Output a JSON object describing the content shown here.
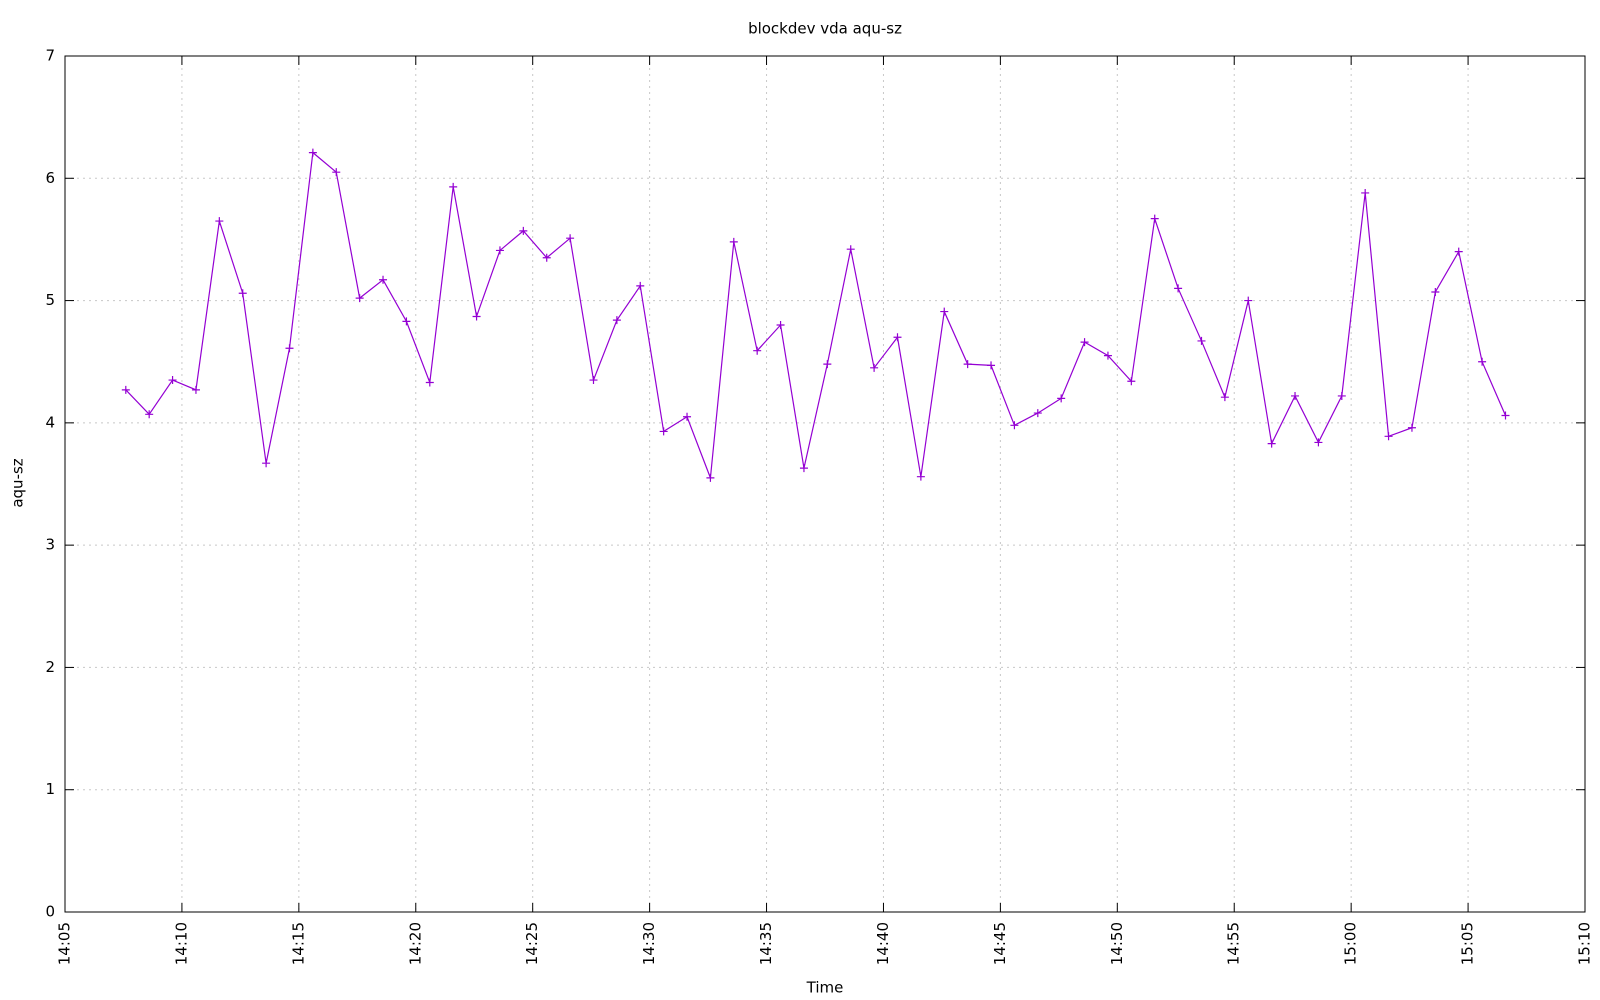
{
  "chart_data": {
    "type": "line",
    "title": "blockdev vda aqu-sz",
    "xlabel": "Time",
    "ylabel": "aqu-sz",
    "x": [
      847.6,
      848.6,
      849.6,
      850.6,
      851.6,
      852.6,
      853.6,
      854.6,
      855.6,
      856.6,
      857.6,
      858.6,
      859.6,
      860.6,
      861.6,
      862.6,
      863.6,
      864.6,
      865.6,
      866.6,
      867.6,
      868.6,
      869.6,
      870.6,
      871.6,
      872.6,
      873.6,
      874.6,
      875.6,
      876.6,
      877.6,
      878.6,
      879.6,
      880.6,
      881.6,
      882.6,
      883.6,
      884.6,
      885.6,
      886.6,
      887.6,
      888.6,
      889.6,
      890.6,
      891.6,
      892.6,
      893.6,
      894.6,
      895.6,
      896.6,
      897.6,
      898.6,
      899.6,
      900.6,
      901.6,
      902.6,
      903.6,
      904.6,
      905.6,
      906.6
    ],
    "series": [
      {
        "color": "#9400d3",
        "values": [
          4.27,
          4.07,
          4.35,
          4.27,
          5.65,
          5.06,
          3.67,
          4.61,
          6.21,
          6.05,
          5.02,
          5.17,
          4.83,
          4.33,
          5.93,
          4.87,
          5.41,
          5.57,
          5.35,
          5.51,
          4.35,
          4.84,
          5.12,
          3.93,
          4.05,
          3.55,
          5.48,
          4.59,
          4.8,
          3.63,
          4.48,
          5.42,
          4.45,
          4.7,
          3.56,
          4.91,
          4.48,
          4.47,
          3.98,
          4.08,
          4.2,
          4.66,
          4.55,
          4.34,
          5.67,
          5.1,
          4.67,
          4.21,
          5.0,
          3.83,
          4.22,
          3.84,
          4.22,
          5.88,
          3.89,
          3.96,
          5.07,
          5.4,
          4.5,
          4.06
        ]
      }
    ],
    "xlim": [
      845,
      910
    ],
    "xticks": [
      {
        "value": 845,
        "label": "14:05"
      },
      {
        "value": 850,
        "label": "14:10"
      },
      {
        "value": 855,
        "label": "14:15"
      },
      {
        "value": 860,
        "label": "14:20"
      },
      {
        "value": 865,
        "label": "14:25"
      },
      {
        "value": 870,
        "label": "14:30"
      },
      {
        "value": 875,
        "label": "14:35"
      },
      {
        "value": 880,
        "label": "14:40"
      },
      {
        "value": 885,
        "label": "14:45"
      },
      {
        "value": 890,
        "label": "14:50"
      },
      {
        "value": 895,
        "label": "14:55"
      },
      {
        "value": 900,
        "label": "15:00"
      },
      {
        "value": 905,
        "label": "15:05"
      },
      {
        "value": 910,
        "label": "15:10"
      }
    ],
    "ylim": [
      0,
      7
    ],
    "yticks": [
      0,
      1,
      2,
      3,
      4,
      5,
      6,
      7
    ],
    "grid": true
  }
}
